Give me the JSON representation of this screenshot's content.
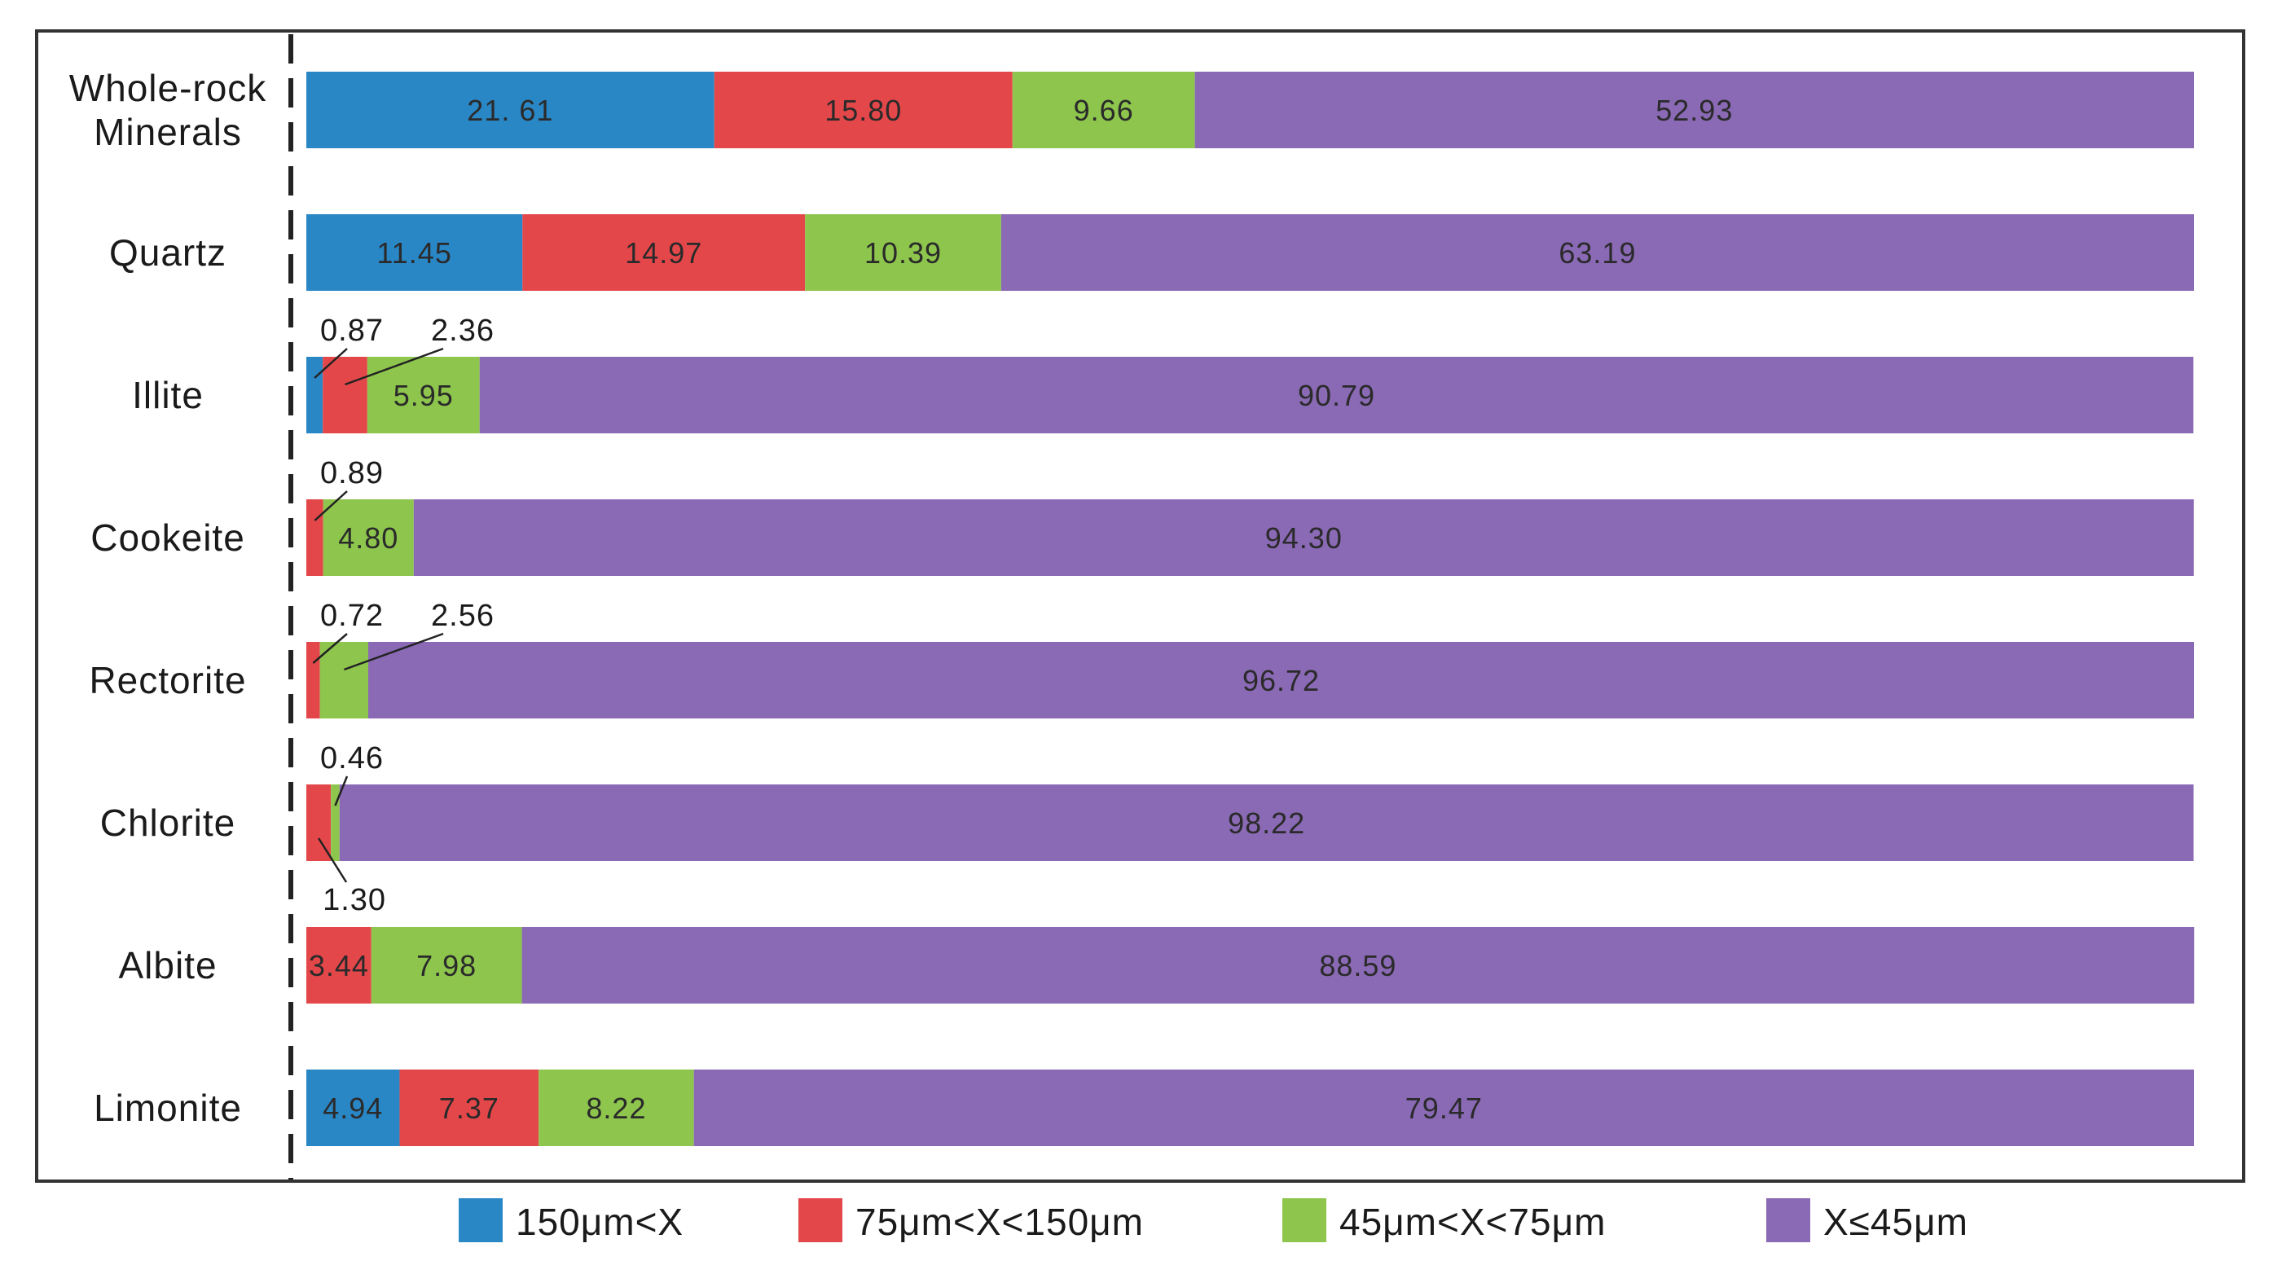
{
  "chart_data": {
    "type": "bar",
    "orientation": "horizontal",
    "stacked": true,
    "percent": true,
    "xlim": [
      0,
      100
    ],
    "categories": [
      [
        "Whole-rock",
        "Minerals"
      ],
      [
        "Quartz"
      ],
      [
        "Illite"
      ],
      [
        "Cookeite"
      ],
      [
        "Rectorite"
      ],
      [
        "Chlorite"
      ],
      [
        "Albite"
      ],
      [
        "Limonite"
      ]
    ],
    "series": [
      {
        "name": "150μm<X",
        "color": "#2a87c6",
        "values": [
          21.61,
          11.45,
          0.87,
          0,
          0,
          0,
          0,
          4.94
        ],
        "labels": [
          "21. 61",
          "11.45",
          "0.87",
          "",
          "",
          "",
          "",
          "4.94"
        ]
      },
      {
        "name": "75μm<X<150μm",
        "color": "#e4474a",
        "values": [
          15.8,
          14.97,
          2.36,
          0.89,
          0.72,
          1.3,
          3.44,
          7.37
        ],
        "labels": [
          "15.80",
          "14.97",
          "2.36",
          "0.89",
          "0.72",
          "1.30",
          "3.44",
          "7.37"
        ]
      },
      {
        "name": "45μm<X<75μm",
        "color": "#8dc54d",
        "values": [
          9.66,
          10.39,
          5.95,
          4.8,
          2.56,
          0.46,
          7.98,
          8.22
        ],
        "labels": [
          "9.66",
          "10.39",
          "5.95",
          "4.80",
          "2.56",
          "0.46",
          "7.98",
          "8.22"
        ]
      },
      {
        "name": "X≤45μm",
        "color": "#8a69b5",
        "values": [
          52.93,
          63.19,
          90.79,
          94.3,
          96.72,
          98.22,
          88.59,
          79.47
        ],
        "labels": [
          "52.93",
          "63.19",
          "90.79",
          "94.30",
          "96.72",
          "98.22",
          "88.59",
          "79.47"
        ]
      }
    ],
    "external_labels": [
      {
        "row": 2,
        "series": 0,
        "side": "above"
      },
      {
        "row": 2,
        "series": 1,
        "side": "above"
      },
      {
        "row": 3,
        "series": 1,
        "side": "above"
      },
      {
        "row": 4,
        "series": 1,
        "side": "above"
      },
      {
        "row": 4,
        "series": 2,
        "side": "above"
      },
      {
        "row": 5,
        "series": 2,
        "side": "above"
      },
      {
        "row": 5,
        "series": 1,
        "side": "below"
      }
    ],
    "legend": {
      "position": "bottom"
    }
  }
}
